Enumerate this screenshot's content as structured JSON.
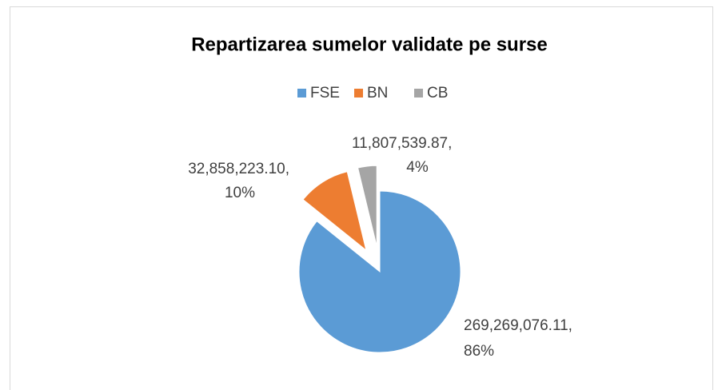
{
  "chart_data": {
    "type": "pie",
    "title": "Repartizarea sumelor validate pe surse",
    "categories": [
      "FSE",
      "BN",
      "CB"
    ],
    "values": [
      269269076.11,
      32858223.1,
      11807539.87
    ],
    "value_labels": [
      "269,269,076.11,",
      "32,858,223.10,",
      "11,807,539.87,"
    ],
    "percent_labels": [
      "86%",
      "10%",
      "4%"
    ],
    "colors": [
      "#5b9bd5",
      "#ed7d31",
      "#a5a5a5"
    ],
    "legend": "top"
  }
}
